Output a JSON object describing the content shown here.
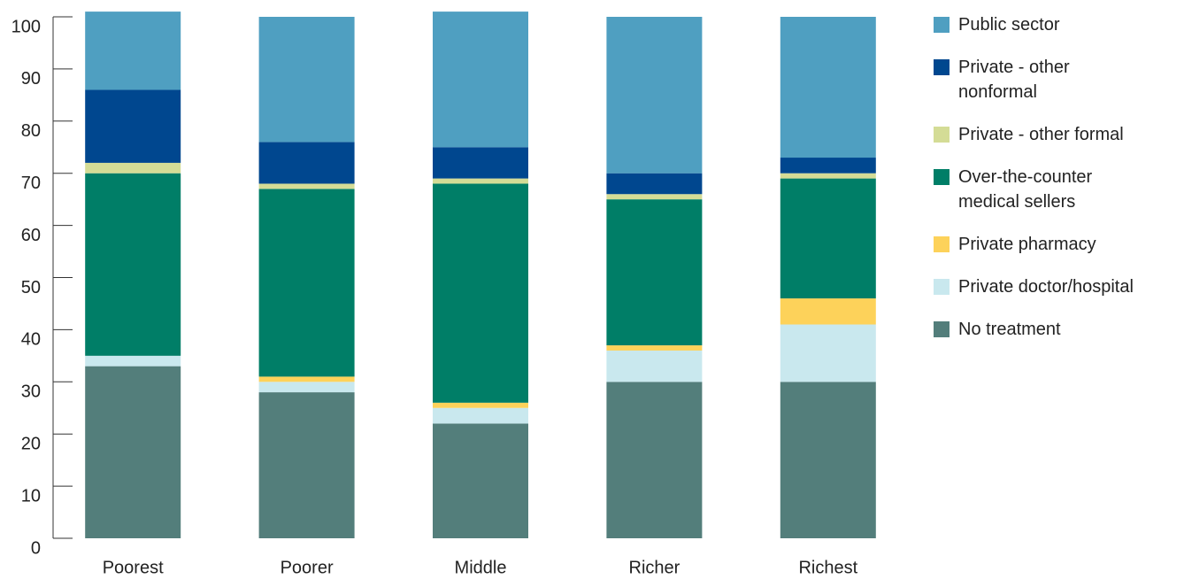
{
  "chart_data": {
    "type": "stacked_bar",
    "categories": [
      "Poorest",
      "Poorer",
      "Middle",
      "Richer",
      "Richest"
    ],
    "series": [
      {
        "name": "Public sector",
        "color": "#4f9fc1",
        "values": [
          15,
          24,
          26,
          30,
          27
        ]
      },
      {
        "name": "Private - other nonformal",
        "color": "#00478f",
        "values": [
          14,
          8,
          6,
          4,
          3
        ]
      },
      {
        "name": "Private - other formal",
        "color": "#d4dc96",
        "values": [
          2,
          1,
          1,
          1,
          1
        ]
      },
      {
        "name": "Over-the-counter medical sellers",
        "color": "#007e67",
        "values": [
          35,
          36,
          42,
          28,
          23
        ]
      },
      {
        "name": "Private pharmacy",
        "color": "#fdd25a",
        "values": [
          0,
          1,
          1,
          1,
          5
        ]
      },
      {
        "name": "Private doctor/hospital",
        "color": "#c9e8ee",
        "values": [
          2,
          2,
          3,
          6,
          11
        ]
      },
      {
        "name": "No treatment",
        "color": "#537e7b",
        "values": [
          33,
          28,
          22,
          30,
          30
        ]
      }
    ],
    "ylim": [
      0,
      100
    ],
    "yticks": [
      0,
      10,
      20,
      30,
      40,
      50,
      60,
      70,
      80,
      90,
      100
    ],
    "legend": "right"
  }
}
